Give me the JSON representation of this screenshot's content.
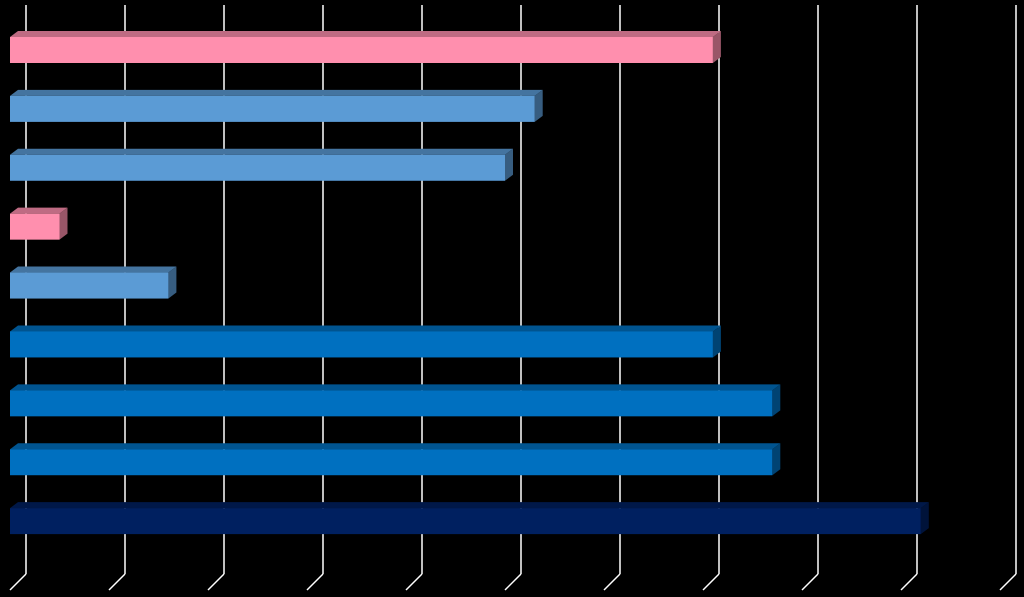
{
  "chart_data": {
    "type": "bar",
    "orientation": "horizontal",
    "categories": [
      null,
      null,
      null,
      null,
      null,
      null,
      null,
      null,
      null
    ],
    "values": [
      7.1,
      5.3,
      5.0,
      0.5,
      1.6,
      7.1,
      7.7,
      7.7,
      9.2
    ],
    "colors": [
      "#ff8fae",
      "#5b9bd5",
      "#5b9bd5",
      "#ff8fae",
      "#5b9bd5",
      "#0070c0",
      "#0070c0",
      "#0070c0",
      "#002060"
    ],
    "xlim": [
      0,
      10
    ],
    "xticks": [
      0,
      1,
      2,
      3,
      4,
      5,
      6,
      7,
      8,
      9,
      10
    ],
    "grid": true
  }
}
